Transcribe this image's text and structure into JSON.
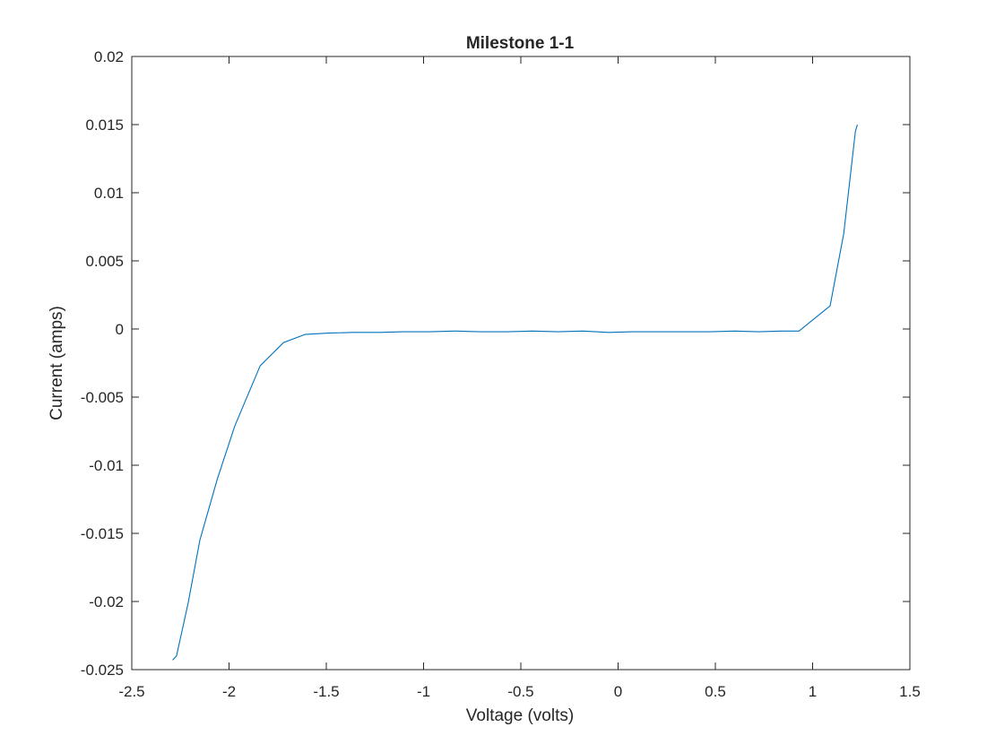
{
  "chart_data": {
    "type": "line",
    "title": "Milestone 1-1",
    "xlabel": "Voltage (volts)",
    "ylabel": "Current (amps)",
    "xlim": [
      -2.5,
      1.5
    ],
    "ylim": [
      -0.025,
      0.02
    ],
    "xticks": [
      "-2.5",
      "-2",
      "-1.5",
      "-1",
      "-0.5",
      "0",
      "0.5",
      "1",
      "1.5"
    ],
    "xtick_values": [
      -2.5,
      -2,
      -1.5,
      -1,
      -0.5,
      0,
      0.5,
      1,
      1.5
    ],
    "yticks": [
      "0.02",
      "0.015",
      "0.01",
      "0.005",
      "0",
      "-0.005",
      "-0.01",
      "-0.015",
      "-0.02",
      "-0.025"
    ],
    "ytick_values": [
      0.02,
      0.015,
      0.01,
      0.005,
      0,
      -0.005,
      -0.01,
      -0.015,
      -0.02,
      -0.025
    ],
    "grid": false,
    "legend": "none",
    "series": [
      {
        "color": "#0072BD",
        "x": [
          -2.29,
          -2.27,
          -2.21,
          -2.15,
          -2.06,
          -1.97,
          -1.84,
          -1.72,
          -1.61,
          -1.49,
          -1.36,
          -1.23,
          -1.1,
          -0.97,
          -0.84,
          -0.71,
          -0.57,
          -0.44,
          -0.31,
          -0.18,
          -0.05,
          0.08,
          0.21,
          0.34,
          0.47,
          0.6,
          0.72,
          0.84,
          0.93,
          1.09,
          1.16,
          1.22,
          1.23
        ],
        "y": [
          -0.0243,
          -0.024,
          -0.0201,
          -0.0155,
          -0.011,
          -0.0071,
          -0.0027,
          -0.001,
          -0.0004,
          -0.0003,
          -0.00025,
          -0.00025,
          -0.0002,
          -0.0002,
          -0.00015,
          -0.0002,
          -0.0002,
          -0.00015,
          -0.0002,
          -0.00015,
          -0.00025,
          -0.0002,
          -0.0002,
          -0.0002,
          -0.0002,
          -0.00015,
          -0.0002,
          -0.00015,
          -0.00015,
          0.0017,
          0.007,
          0.0145,
          0.015
        ]
      }
    ]
  }
}
